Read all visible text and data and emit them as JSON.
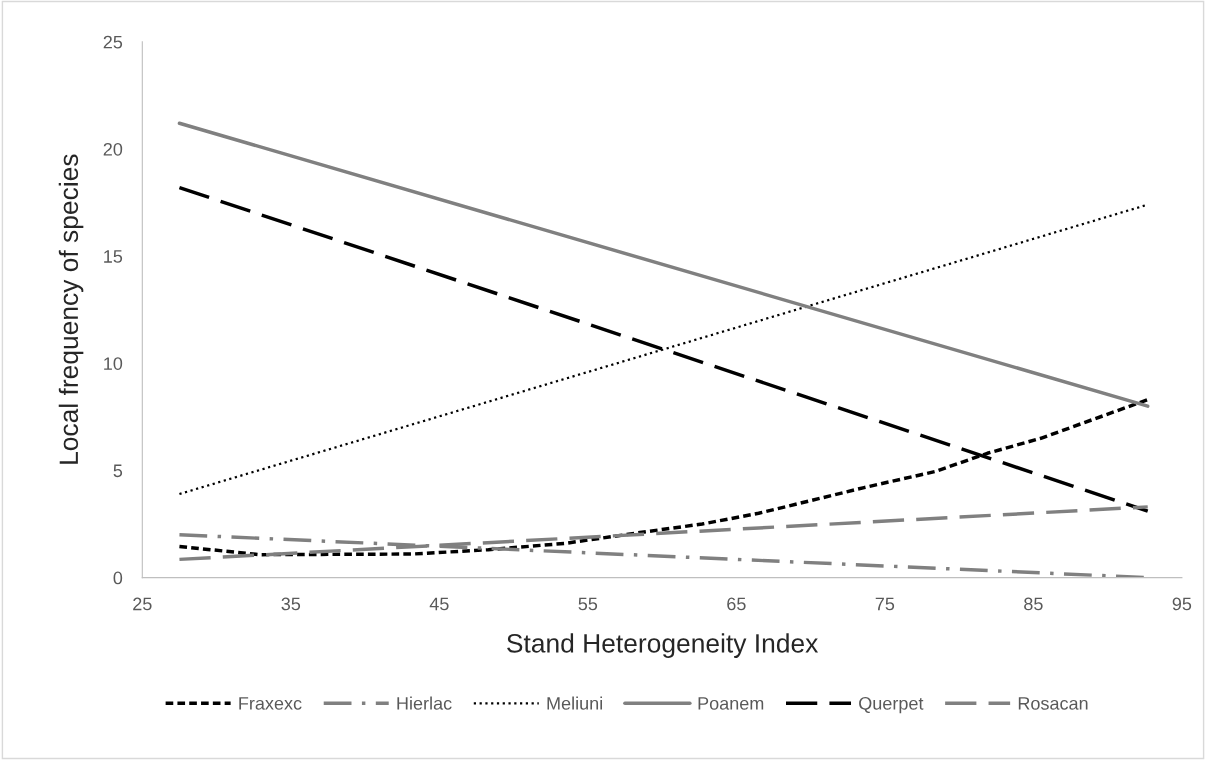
{
  "chart_data": {
    "type": "line",
    "xlabel": "Stand Heterogeneity Index",
    "ylabel": "Local frequency of species",
    "xlim": [
      25,
      95
    ],
    "xticks": [
      25,
      35,
      45,
      55,
      65,
      75,
      85,
      95
    ],
    "ylim": [
      0,
      25
    ],
    "yticks": [
      0,
      5,
      10,
      15,
      20,
      25
    ],
    "grid": false,
    "legend": "bottom",
    "marker": "none",
    "series": [
      {
        "name": "Fraxexc",
        "color": "#000000",
        "line_style": "shortdash",
        "x": [
          27.5,
          32.9,
          43.2,
          48.3,
          53.5,
          58.5,
          62.7,
          66.5,
          73.6,
          78.4,
          81.9,
          85.5,
          89.1,
          92.7
        ],
        "values": [
          1.45,
          1.07,
          1.1,
          1.3,
          1.6,
          2.1,
          2.5,
          3.0,
          4.2,
          4.95,
          5.8,
          6.5,
          7.4,
          8.3
        ]
      },
      {
        "name": "Hierlac",
        "color": "#808080",
        "line_style": "dashdot",
        "x": [
          27.5,
          92.7
        ],
        "values": [
          2.0,
          0.0
        ]
      },
      {
        "name": "Meliuni",
        "color": "#000000",
        "line_style": "dotted",
        "x": [
          27.5,
          92.7
        ],
        "values": [
          3.9,
          17.4
        ]
      },
      {
        "name": "Poanem",
        "color": "#808080",
        "line_style": "solid",
        "x": [
          27.5,
          92.7
        ],
        "values": [
          21.2,
          8.0
        ]
      },
      {
        "name": "Querpet",
        "color": "#000000",
        "line_style": "dashed",
        "x": [
          27.5,
          92.7
        ],
        "values": [
          18.2,
          3.1
        ]
      },
      {
        "name": "Rosacan",
        "color": "#808080",
        "line_style": "dashed",
        "x": [
          27.5,
          92.7
        ],
        "values": [
          0.85,
          3.3
        ]
      }
    ]
  }
}
